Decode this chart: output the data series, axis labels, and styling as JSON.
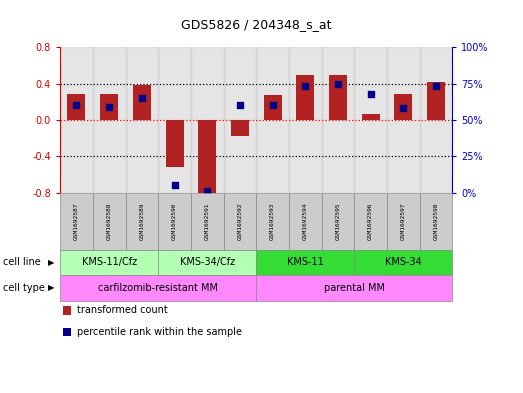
{
  "title": "GDS5826 / 204348_s_at",
  "samples": [
    "GSM1692587",
    "GSM1692588",
    "GSM1692589",
    "GSM1692590",
    "GSM1692591",
    "GSM1692592",
    "GSM1692593",
    "GSM1692594",
    "GSM1692595",
    "GSM1692596",
    "GSM1692597",
    "GSM1692598"
  ],
  "transformed_count": [
    0.28,
    0.28,
    0.38,
    -0.52,
    -0.82,
    -0.18,
    0.27,
    0.49,
    0.49,
    0.07,
    0.28,
    0.42
  ],
  "percentile_rank": [
    60,
    59,
    65,
    5,
    1,
    60,
    60,
    73,
    75,
    68,
    58,
    73
  ],
  "bar_color": "#b22222",
  "dot_color": "#00008b",
  "ylim_left": [
    -0.8,
    0.8
  ],
  "ylim_right": [
    0,
    100
  ],
  "yticks_left": [
    -0.8,
    -0.4,
    0.0,
    0.4,
    0.8
  ],
  "yticks_right": [
    0,
    25,
    50,
    75,
    100
  ],
  "ytick_labels_right": [
    "0%",
    "25%",
    "50%",
    "75%",
    "100%"
  ],
  "dotted_lines": [
    -0.4,
    0.0,
    0.4
  ],
  "hline_color": "#ff0000",
  "cell_line_groups": [
    {
      "label": "KMS-11/Cfz",
      "start": 0,
      "end": 3,
      "color": "#b3ffb3"
    },
    {
      "label": "KMS-34/Cfz",
      "start": 3,
      "end": 6,
      "color": "#b3ffb3"
    },
    {
      "label": "KMS-11",
      "start": 6,
      "end": 9,
      "color": "#33dd33"
    },
    {
      "label": "KMS-34",
      "start": 9,
      "end": 12,
      "color": "#33dd33"
    }
  ],
  "cell_type_groups": [
    {
      "label": "carfilzomib-resistant MM",
      "start": 0,
      "end": 6,
      "color": "#ff88ff"
    },
    {
      "label": "parental MM",
      "start": 6,
      "end": 12,
      "color": "#ff88ff"
    }
  ],
  "cell_line_row_label": "cell line",
  "cell_type_row_label": "cell type",
  "legend_items": [
    {
      "color": "#b22222",
      "label": "transformed count"
    },
    {
      "color": "#00008b",
      "label": "percentile rank within the sample"
    }
  ],
  "bg_color_sample": "#cccccc",
  "left_axis_color": "#cc0000",
  "right_axis_color": "#0000cc"
}
